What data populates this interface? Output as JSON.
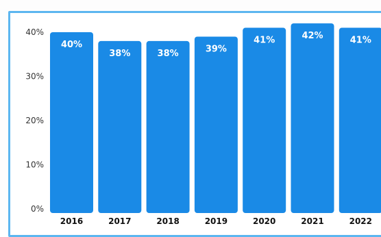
{
  "chart_data": {
    "type": "bar",
    "categories": [
      "2016",
      "2017",
      "2018",
      "2019",
      "2020",
      "2021",
      "2022"
    ],
    "values": [
      40,
      38,
      38,
      39,
      41,
      42,
      41
    ],
    "data_labels": [
      "40%",
      "38%",
      "38%",
      "39%",
      "41%",
      "42%",
      "41%"
    ],
    "y_ticks": [
      "0%",
      "10%",
      "20%",
      "30%",
      "40%"
    ],
    "ylim": [
      0,
      40
    ],
    "title": "",
    "xlabel": "",
    "ylabel": "",
    "grid": false,
    "bar_color": "#1a8ae6",
    "frame_color": "#5cb6f0"
  }
}
